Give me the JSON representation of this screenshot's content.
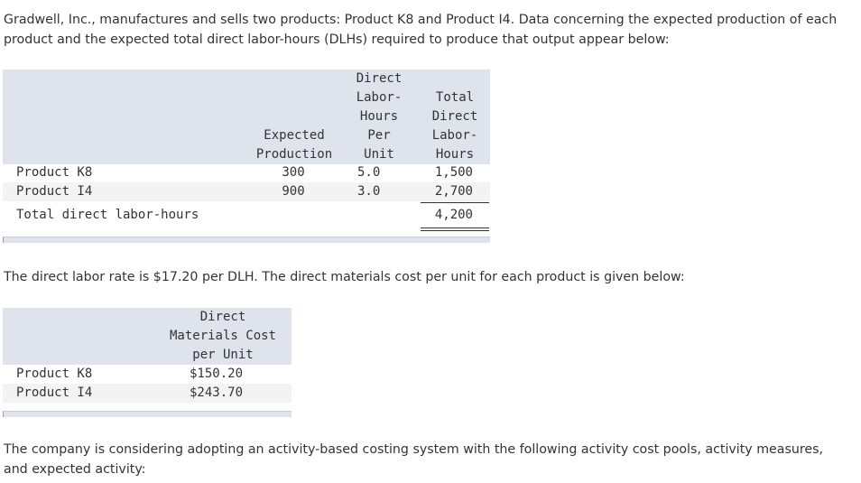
{
  "intro": "Gradwell, Inc., manufactures and sells two products: Product K8 and Product I4. Data concerning the expected production of each product and the expected total direct labor-hours (DLHs) required to produce that output appear below:",
  "table1": {
    "headers": {
      "expected_production": [
        "Expected",
        "Production"
      ],
      "dlh_per_unit": [
        "Direct",
        "Labor-",
        "Hours",
        "Per",
        "Unit"
      ],
      "total_dlh": [
        "Total",
        "Direct",
        "Labor-",
        "Hours"
      ]
    },
    "rows": [
      {
        "label": "Product K8",
        "production": "300",
        "per_unit": "5.0",
        "total": "1,500"
      },
      {
        "label": "Product I4",
        "production": "900",
        "per_unit": "3.0",
        "total": "2,700"
      }
    ],
    "total_row": {
      "label": "Total direct labor-hours",
      "total": "4,200"
    }
  },
  "middle": "The direct labor rate is $17.20 per DLH. The direct materials cost per unit for each product is given below:",
  "table2": {
    "header": [
      "Direct",
      "Materials Cost",
      "per Unit"
    ],
    "rows": [
      {
        "label": "Product K8",
        "value": "$150.20"
      },
      {
        "label": "Product I4",
        "value": "$243.70"
      }
    ]
  },
  "closing": "The company is considering adopting an activity-based costing system with the following activity cost pools, activity measures, and expected activity:"
}
